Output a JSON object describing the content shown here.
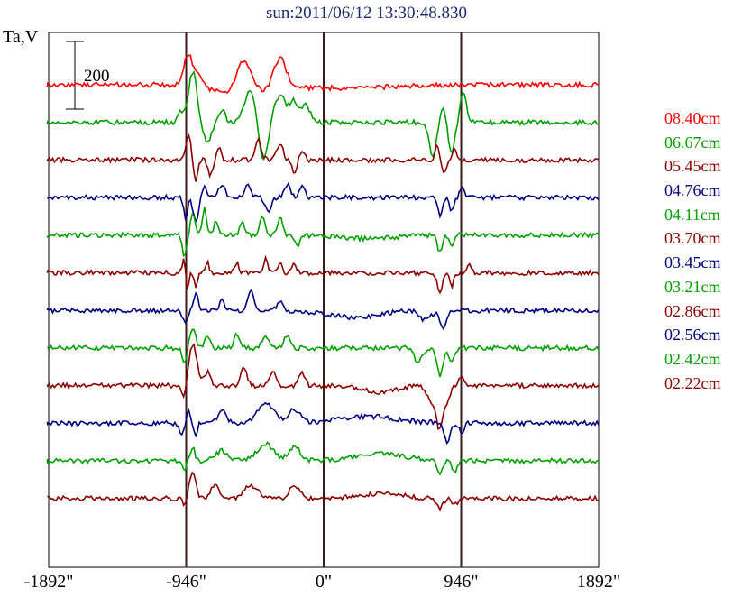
{
  "title": "sun:2011/06/12 13:30:48.830",
  "ylabel": "Ta,V",
  "scale_bar_label": "200",
  "chart_data": {
    "type": "line",
    "title": "sun:2011/06/12 13:30:48.830",
    "ylabel": "Ta,V",
    "xlabel": "",
    "xlim": [
      -1892,
      1892
    ],
    "x_ticks": [
      "-1892\"",
      "-946\"",
      "0\"",
      "946\"",
      "1892\""
    ],
    "x_tick_values": [
      -1892,
      -946,
      0,
      946,
      1892
    ],
    "vertical_lines_at": [
      -946,
      0,
      946
    ],
    "scale_bar_value": 200,
    "grid": false,
    "legend_position": "right",
    "series": [
      {
        "name": "08.40cm",
        "color": "#ff0000",
        "baseline": 8,
        "seed": 1,
        "features": [
          [
            -935,
            90,
            40
          ],
          [
            -870,
            40,
            45
          ],
          [
            -550,
            95,
            70
          ],
          [
            -300,
            90,
            60
          ],
          [
            -600,
            -25,
            250
          ],
          [
            120,
            -10,
            500
          ]
        ]
      },
      {
        "name": "06.67cm",
        "color": "#00a000",
        "baseline": 7,
        "seed": 2,
        "features": [
          [
            -980,
            30,
            30
          ],
          [
            -900,
            150,
            40
          ],
          [
            -800,
            -60,
            40
          ],
          [
            -700,
            40,
            30
          ],
          [
            -500,
            100,
            60
          ],
          [
            -420,
            -120,
            50
          ],
          [
            -300,
            80,
            60
          ],
          [
            -200,
            60,
            40
          ],
          [
            -120,
            50,
            40
          ],
          [
            750,
            -100,
            35
          ],
          [
            820,
            50,
            25
          ],
          [
            880,
            -90,
            30
          ],
          [
            960,
            90,
            30
          ]
        ]
      },
      {
        "name": "05.45cm",
        "color": "#8b0000",
        "baseline": 6,
        "seed": 3,
        "features": [
          [
            -930,
            70,
            25
          ],
          [
            -880,
            -60,
            20
          ],
          [
            -780,
            -50,
            20
          ],
          [
            -720,
            40,
            20
          ],
          [
            -450,
            60,
            30
          ],
          [
            -300,
            50,
            30
          ],
          [
            -200,
            -40,
            25
          ],
          [
            -150,
            30,
            25
          ],
          [
            780,
            40,
            20
          ],
          [
            830,
            -40,
            20
          ],
          [
            900,
            30,
            20
          ]
        ]
      },
      {
        "name": "04.76cm",
        "color": "#000080",
        "baseline": 5,
        "seed": 4,
        "features": [
          [
            -950,
            -60,
            20
          ],
          [
            -880,
            -70,
            25
          ],
          [
            -820,
            30,
            20
          ],
          [
            -700,
            40,
            30
          ],
          [
            -520,
            40,
            30
          ],
          [
            -380,
            -40,
            30
          ],
          [
            -250,
            40,
            30
          ],
          [
            -150,
            30,
            30
          ],
          [
            800,
            -50,
            25
          ],
          [
            880,
            -40,
            20
          ],
          [
            950,
            30,
            20
          ]
        ]
      },
      {
        "name": "04.11cm",
        "color": "#00a000",
        "baseline": 4,
        "seed": 5,
        "features": [
          [
            -960,
            -60,
            20
          ],
          [
            -900,
            70,
            20
          ],
          [
            -820,
            80,
            20
          ],
          [
            -740,
            40,
            20
          ],
          [
            -560,
            40,
            25
          ],
          [
            -420,
            60,
            25
          ],
          [
            -300,
            50,
            25
          ],
          [
            -180,
            -30,
            25
          ],
          [
            300,
            -10,
            250
          ],
          [
            800,
            -50,
            25
          ],
          [
            880,
            -40,
            20
          ]
        ]
      },
      {
        "name": "03.70cm",
        "color": "#8b0000",
        "baseline": 3,
        "seed": 6,
        "features": [
          [
            -960,
            50,
            15
          ],
          [
            -940,
            -60,
            15
          ],
          [
            -880,
            -40,
            15
          ],
          [
            -800,
            40,
            15
          ],
          [
            -600,
            30,
            20
          ],
          [
            -400,
            40,
            20
          ],
          [
            -300,
            30,
            20
          ],
          [
            -200,
            30,
            20
          ],
          [
            800,
            -60,
            25
          ],
          [
            880,
            -40,
            20
          ],
          [
            1000,
            30,
            20
          ]
        ]
      },
      {
        "name": "03.45cm",
        "color": "#000080",
        "baseline": 2,
        "seed": 7,
        "features": [
          [
            -950,
            -40,
            25
          ],
          [
            -880,
            50,
            25
          ],
          [
            -700,
            30,
            25
          ],
          [
            -500,
            60,
            30
          ],
          [
            -300,
            30,
            30
          ],
          [
            200,
            -20,
            250
          ],
          [
            700,
            -30,
            50
          ],
          [
            820,
            -50,
            30
          ]
        ]
      },
      {
        "name": "03.21cm",
        "color": "#00a000",
        "baseline": 1,
        "seed": 8,
        "features": [
          [
            -960,
            -50,
            20
          ],
          [
            -900,
            60,
            25
          ],
          [
            -800,
            40,
            25
          ],
          [
            -600,
            40,
            25
          ],
          [
            -400,
            40,
            30
          ],
          [
            -250,
            40,
            30
          ],
          [
            650,
            -40,
            40
          ],
          [
            800,
            -80,
            30
          ],
          [
            880,
            -40,
            25
          ]
        ]
      },
      {
        "name": "02.86cm",
        "color": "#8b0000",
        "baseline": 0,
        "seed": 9,
        "features": [
          [
            -960,
            -40,
            20
          ],
          [
            -900,
            120,
            40
          ],
          [
            -800,
            40,
            30
          ],
          [
            -550,
            50,
            30
          ],
          [
            -350,
            40,
            30
          ],
          [
            -150,
            40,
            30
          ],
          [
            400,
            -20,
            150
          ],
          [
            750,
            -50,
            50
          ],
          [
            800,
            -110,
            30
          ],
          [
            850,
            -40,
            30
          ],
          [
            950,
            30,
            25
          ]
        ]
      },
      {
        "name": "02.56cm",
        "color": "#000080",
        "baseline": -1,
        "seed": 10,
        "features": [
          [
            -980,
            -40,
            20
          ],
          [
            -930,
            40,
            15
          ],
          [
            -880,
            -40,
            15
          ],
          [
            -700,
            40,
            40
          ],
          [
            -400,
            60,
            80
          ],
          [
            -200,
            40,
            60
          ],
          [
            300,
            20,
            300
          ],
          [
            850,
            -60,
            30
          ],
          [
            950,
            -40,
            20
          ]
        ]
      },
      {
        "name": "02.42cm",
        "color": "#00a000",
        "baseline": -2,
        "seed": 11,
        "features": [
          [
            -960,
            -30,
            15
          ],
          [
            -900,
            40,
            20
          ],
          [
            -700,
            30,
            60
          ],
          [
            -400,
            50,
            80
          ],
          [
            -200,
            40,
            60
          ],
          [
            400,
            20,
            250
          ],
          [
            800,
            -40,
            30
          ],
          [
            900,
            -30,
            25
          ]
        ]
      },
      {
        "name": "02.22cm",
        "color": "#8b0000",
        "baseline": -3,
        "seed": 12,
        "features": [
          [
            -960,
            -30,
            15
          ],
          [
            -900,
            80,
            30
          ],
          [
            -750,
            40,
            40
          ],
          [
            -500,
            40,
            60
          ],
          [
            -200,
            40,
            50
          ],
          [
            400,
            15,
            200
          ],
          [
            800,
            -30,
            30
          ],
          [
            900,
            -20,
            25
          ]
        ]
      }
    ]
  }
}
